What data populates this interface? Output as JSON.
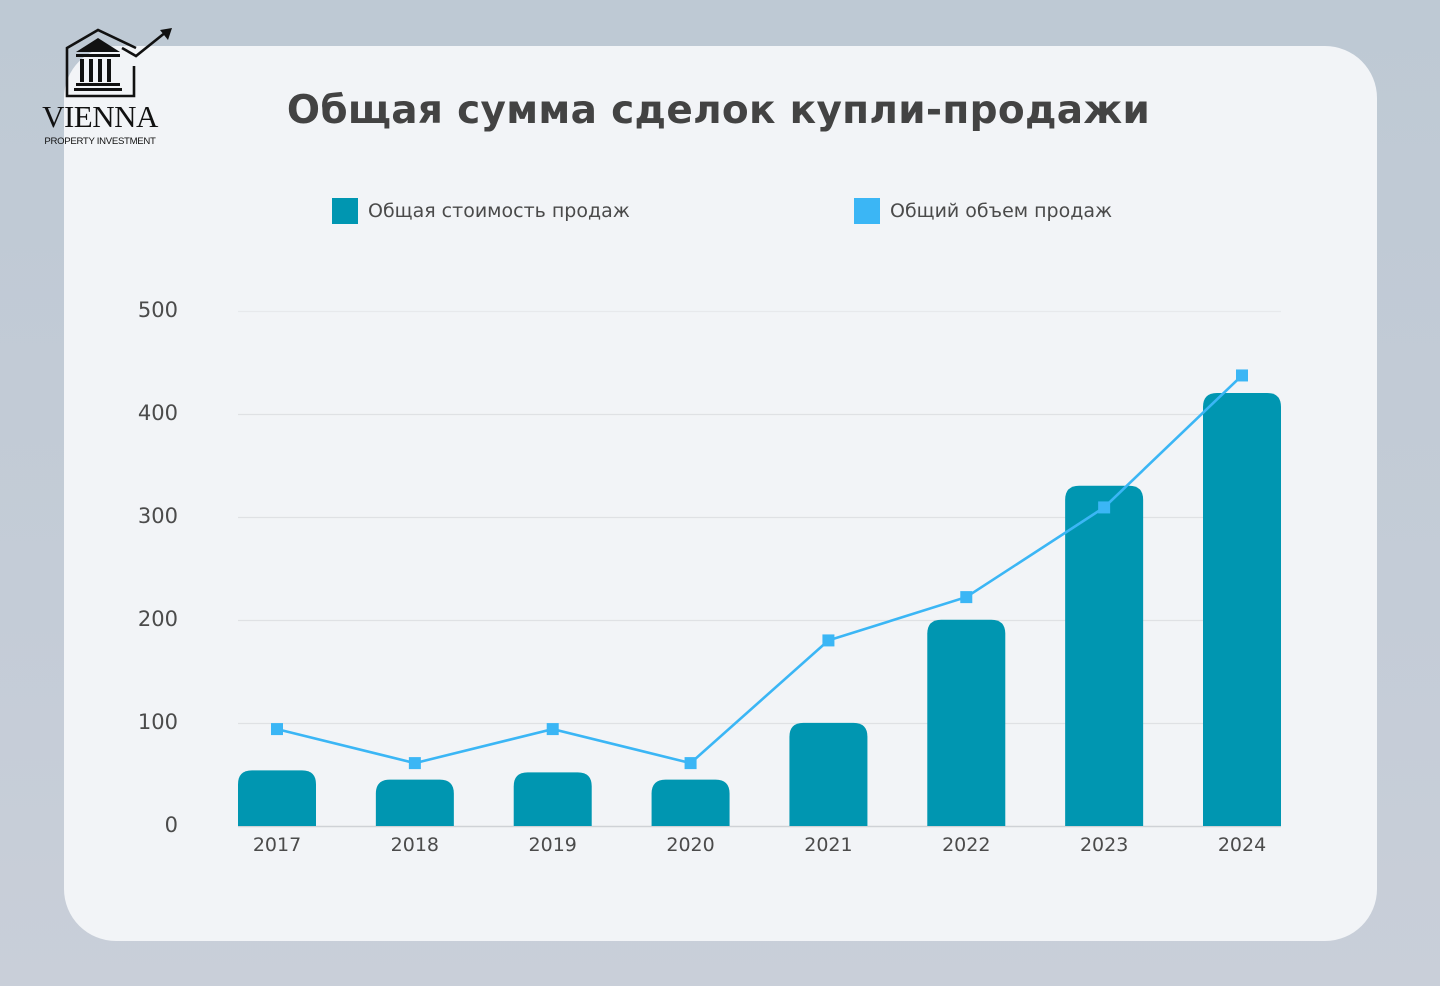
{
  "brand": {
    "name": "VIENNA",
    "tagline": "PROPERTY INVESTMENT",
    "logo_icon": "building-with-rising-arrow-icon"
  },
  "chart": {
    "title": "Общая сумма сделок купли-продажи",
    "legend": [
      {
        "label": "Общая стоимость продаж",
        "color": "#0096b1",
        "marker": "square"
      },
      {
        "label": "Общий объем продаж",
        "color": "#3bb6f5",
        "marker": "square"
      }
    ],
    "y_ticks": [
      "0",
      "100",
      "200",
      "300",
      "400",
      "500"
    ],
    "x_ticks": [
      "2017",
      "2018",
      "2019",
      "2020",
      "2021",
      "2022",
      "2023",
      "2024"
    ]
  },
  "colors": {
    "bar": "#0096b1",
    "line": "#3bb6f5",
    "grid": "#dfe1e4",
    "card": "#f2f4f7",
    "text": "#434343"
  },
  "chart_data": {
    "type": "bar",
    "title": "Общая сумма сделок купли-продажи",
    "xlabel": "",
    "ylabel": "",
    "categories": [
      "2017",
      "2018",
      "2019",
      "2020",
      "2021",
      "2022",
      "2023",
      "2024"
    ],
    "series": [
      {
        "name": "Общая стоимость продаж",
        "type": "bar",
        "color": "#0096b1",
        "values": [
          54,
          45,
          52,
          45,
          100,
          200,
          330,
          420
        ]
      },
      {
        "name": "Общий объем продаж",
        "type": "line",
        "color": "#3bb6f5",
        "marker": "square",
        "values": [
          94,
          61,
          94,
          61,
          180,
          222,
          309,
          437
        ]
      }
    ],
    "ylim": [
      0,
      500
    ],
    "yticks": [
      0,
      100,
      200,
      300,
      400,
      500
    ],
    "grid": true,
    "legend_position": "top"
  }
}
